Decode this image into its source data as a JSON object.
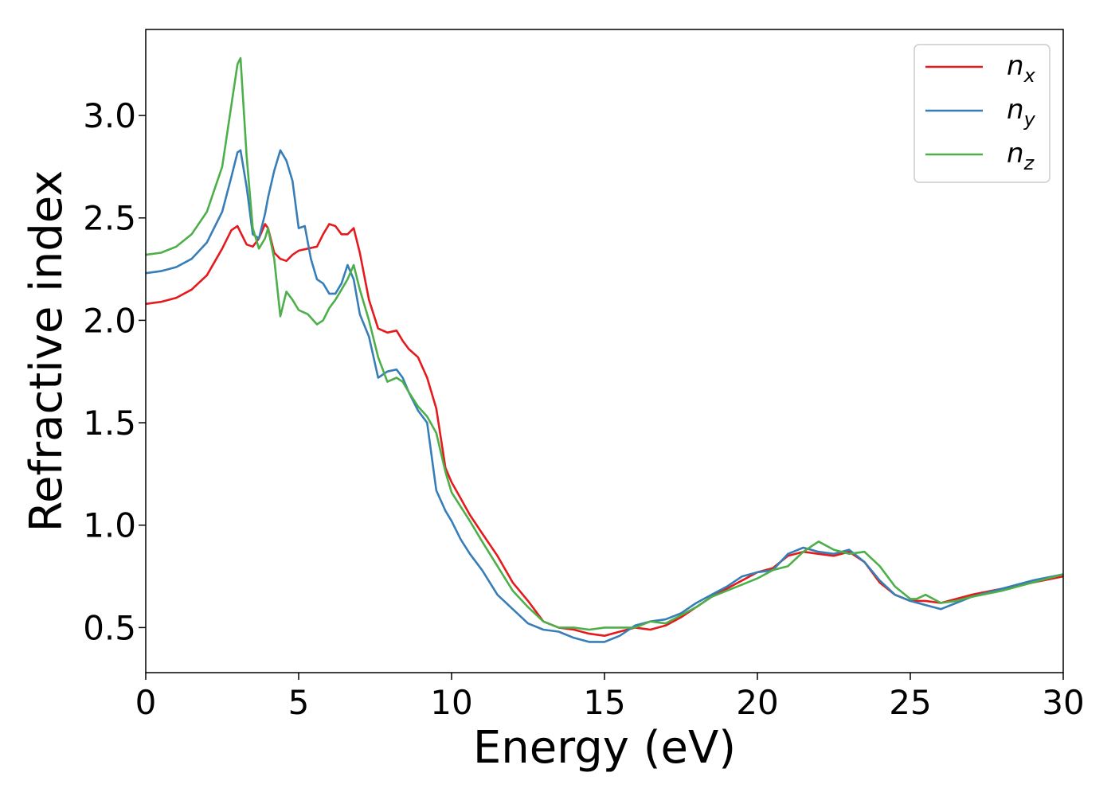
{
  "chart_data": {
    "type": "line",
    "title": "",
    "xlabel": "Energy (eV)",
    "ylabel": "Refractive index",
    "xlim": [
      0,
      30
    ],
    "ylim": [
      0.28,
      3.42
    ],
    "xticks": [
      0,
      5,
      10,
      15,
      20,
      25,
      30
    ],
    "xtick_labels": [
      "0",
      "5",
      "10",
      "15",
      "20",
      "25",
      "30"
    ],
    "yticks": [
      0.5,
      1.0,
      1.5,
      2.0,
      2.5,
      3.0
    ],
    "ytick_labels": [
      "0.5",
      "1.0",
      "1.5",
      "2.0",
      "2.5",
      "3.0"
    ],
    "grid": false,
    "legend_position": "top-right",
    "series": [
      {
        "name": "n",
        "subscript": "x",
        "color": "#e41a1c",
        "x": [
          0,
          0.5,
          1.0,
          1.5,
          2.0,
          2.5,
          2.8,
          3.0,
          3.1,
          3.3,
          3.5,
          3.7,
          3.9,
          4.0,
          4.2,
          4.4,
          4.6,
          4.8,
          5.0,
          5.3,
          5.6,
          5.8,
          6.0,
          6.2,
          6.4,
          6.6,
          6.8,
          7.0,
          7.3,
          7.6,
          7.9,
          8.2,
          8.4,
          8.6,
          8.9,
          9.2,
          9.5,
          9.8,
          10.0,
          10.3,
          10.6,
          11.0,
          11.5,
          12.0,
          12.5,
          13.0,
          13.5,
          14.0,
          14.5,
          15.0,
          15.5,
          16.0,
          16.5,
          17.0,
          17.5,
          18.0,
          18.5,
          19.0,
          19.5,
          20.0,
          20.5,
          21.0,
          21.5,
          22.0,
          22.5,
          23.0,
          23.5,
          24.0,
          24.5,
          25.0,
          25.5,
          26.0,
          26.5,
          27.0,
          28.0,
          29.0,
          30.0
        ],
        "y": [
          2.08,
          2.09,
          2.11,
          2.15,
          2.22,
          2.35,
          2.44,
          2.46,
          2.43,
          2.37,
          2.36,
          2.4,
          2.47,
          2.45,
          2.33,
          2.3,
          2.29,
          2.32,
          2.34,
          2.35,
          2.36,
          2.42,
          2.47,
          2.46,
          2.42,
          2.42,
          2.45,
          2.33,
          2.1,
          1.96,
          1.94,
          1.95,
          1.9,
          1.86,
          1.82,
          1.72,
          1.57,
          1.28,
          1.21,
          1.13,
          1.05,
          0.96,
          0.85,
          0.72,
          0.63,
          0.53,
          0.5,
          0.49,
          0.47,
          0.46,
          0.48,
          0.5,
          0.49,
          0.51,
          0.55,
          0.6,
          0.65,
          0.69,
          0.73,
          0.77,
          0.79,
          0.85,
          0.87,
          0.86,
          0.85,
          0.87,
          0.82,
          0.72,
          0.66,
          0.63,
          0.63,
          0.62,
          0.64,
          0.66,
          0.69,
          0.72,
          0.75
        ]
      },
      {
        "name": "n",
        "subscript": "y",
        "color": "#377eb8",
        "x": [
          0,
          0.5,
          1.0,
          1.5,
          2.0,
          2.5,
          2.8,
          3.0,
          3.1,
          3.3,
          3.5,
          3.7,
          3.9,
          4.0,
          4.2,
          4.4,
          4.6,
          4.8,
          5.0,
          5.2,
          5.4,
          5.6,
          5.8,
          6.0,
          6.2,
          6.4,
          6.6,
          6.8,
          7.0,
          7.3,
          7.6,
          7.9,
          8.2,
          8.4,
          8.6,
          8.9,
          9.2,
          9.5,
          9.8,
          10.0,
          10.3,
          10.6,
          11.0,
          11.5,
          12.0,
          12.5,
          13.0,
          13.5,
          14.0,
          14.5,
          15.0,
          15.5,
          16.0,
          16.5,
          17.0,
          17.5,
          18.0,
          18.5,
          19.0,
          19.5,
          20.0,
          20.5,
          21.0,
          21.5,
          22.0,
          22.5,
          23.0,
          23.5,
          24.0,
          24.5,
          25.0,
          25.5,
          26.0,
          26.5,
          27.0,
          28.0,
          29.0,
          30.0
        ],
        "y": [
          2.23,
          2.24,
          2.26,
          2.3,
          2.38,
          2.53,
          2.7,
          2.82,
          2.83,
          2.65,
          2.42,
          2.4,
          2.52,
          2.6,
          2.73,
          2.83,
          2.78,
          2.68,
          2.45,
          2.46,
          2.3,
          2.2,
          2.18,
          2.13,
          2.13,
          2.18,
          2.27,
          2.2,
          2.03,
          1.92,
          1.72,
          1.75,
          1.76,
          1.72,
          1.65,
          1.56,
          1.5,
          1.17,
          1.07,
          1.02,
          0.93,
          0.86,
          0.78,
          0.66,
          0.59,
          0.52,
          0.49,
          0.48,
          0.45,
          0.43,
          0.43,
          0.46,
          0.51,
          0.53,
          0.54,
          0.57,
          0.62,
          0.66,
          0.7,
          0.75,
          0.77,
          0.78,
          0.86,
          0.89,
          0.87,
          0.86,
          0.88,
          0.82,
          0.73,
          0.66,
          0.63,
          0.61,
          0.59,
          0.62,
          0.65,
          0.69,
          0.73,
          0.76
        ]
      },
      {
        "name": "n",
        "subscript": "z",
        "color": "#4daf4a",
        "x": [
          0,
          0.5,
          1.0,
          1.5,
          2.0,
          2.5,
          2.8,
          3.0,
          3.1,
          3.3,
          3.5,
          3.7,
          3.9,
          4.0,
          4.2,
          4.4,
          4.6,
          4.8,
          5.0,
          5.3,
          5.6,
          5.8,
          6.0,
          6.2,
          6.4,
          6.6,
          6.8,
          7.0,
          7.3,
          7.6,
          7.9,
          8.2,
          8.4,
          8.6,
          8.9,
          9.2,
          9.5,
          9.8,
          10.0,
          10.3,
          10.6,
          11.0,
          11.5,
          12.0,
          12.5,
          13.0,
          13.5,
          14.0,
          14.5,
          15.0,
          15.5,
          16.0,
          16.5,
          17.0,
          17.5,
          18.0,
          18.5,
          19.0,
          19.5,
          20.0,
          20.5,
          21.0,
          21.5,
          22.0,
          22.5,
          23.0,
          23.5,
          24.0,
          24.5,
          25.0,
          25.2,
          25.5,
          26.0,
          26.5,
          27.0,
          28.0,
          29.0,
          30.0
        ],
        "y": [
          2.32,
          2.33,
          2.36,
          2.42,
          2.53,
          2.75,
          3.05,
          3.25,
          3.28,
          2.8,
          2.45,
          2.35,
          2.4,
          2.45,
          2.3,
          2.02,
          2.14,
          2.1,
          2.05,
          2.03,
          1.98,
          2.0,
          2.06,
          2.1,
          2.15,
          2.2,
          2.27,
          2.15,
          2.0,
          1.82,
          1.7,
          1.72,
          1.7,
          1.65,
          1.58,
          1.53,
          1.45,
          1.26,
          1.16,
          1.09,
          1.02,
          0.92,
          0.8,
          0.68,
          0.6,
          0.53,
          0.5,
          0.5,
          0.49,
          0.5,
          0.5,
          0.5,
          0.53,
          0.52,
          0.56,
          0.6,
          0.65,
          0.68,
          0.71,
          0.74,
          0.78,
          0.8,
          0.87,
          0.92,
          0.88,
          0.86,
          0.87,
          0.8,
          0.7,
          0.64,
          0.64,
          0.66,
          0.62,
          0.63,
          0.65,
          0.68,
          0.72,
          0.76
        ]
      }
    ]
  }
}
